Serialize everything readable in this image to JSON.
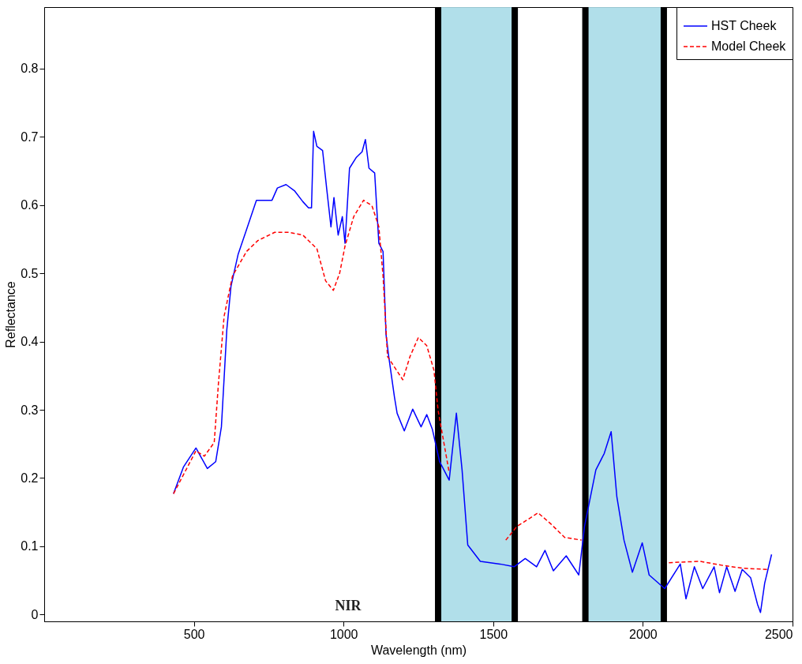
{
  "chart_data": {
    "type": "line",
    "xlabel": "Wavelength (nm)",
    "ylabel": "Reflectance",
    "xlim": [
      0,
      2500
    ],
    "xticks": [
      500,
      1000,
      1500,
      2000,
      2500
    ],
    "ylim": [
      -0.01,
      0.89
    ],
    "yticks": [
      0,
      0.1,
      0.2,
      0.3,
      0.4,
      0.5,
      0.6,
      0.7,
      0.8
    ],
    "grid": false,
    "legend": "top right",
    "series": [
      {
        "name": "HST Cheek",
        "color": "#0000ff",
        "line_style": "solid",
        "x": [
          432,
          465,
          507,
          545,
          573,
          592,
          610,
          624,
          648,
          676,
          709,
          761,
          779,
          808,
          836,
          864,
          883,
          893,
          900,
          911,
          930,
          944,
          958,
          968,
          982,
          996,
          1005,
          1020,
          1043,
          1062,
          1073,
          1085,
          1104,
          1118,
          1132,
          1142,
          1151,
          1170,
          1179,
          1203,
          1231,
          1259,
          1278,
          1297,
          1321,
          1353,
          1377,
          1396,
          1415,
          1457,
          1523,
          1570,
          1607,
          1645,
          1673,
          1701,
          1744,
          1786,
          1805,
          1843,
          1871,
          1894,
          1913,
          1937,
          1965,
          1998,
          2021,
          2073,
          2125,
          2144,
          2172,
          2200,
          2238,
          2256,
          2280,
          2308,
          2332,
          2360,
          2383,
          2393,
          2407,
          2430
        ],
        "values": [
          0.177,
          0.216,
          0.244,
          0.214,
          0.224,
          0.275,
          0.417,
          0.481,
          0.528,
          0.564,
          0.607,
          0.607,
          0.625,
          0.63,
          0.621,
          0.605,
          0.596,
          0.596,
          0.708,
          0.686,
          0.68,
          0.623,
          0.568,
          0.611,
          0.556,
          0.583,
          0.544,
          0.654,
          0.67,
          0.678,
          0.696,
          0.654,
          0.647,
          0.544,
          0.532,
          0.41,
          0.378,
          0.319,
          0.295,
          0.269,
          0.301,
          0.275,
          0.293,
          0.271,
          0.224,
          0.197,
          0.295,
          0.212,
          0.102,
          0.078,
          0.074,
          0.07,
          0.082,
          0.07,
          0.094,
          0.064,
          0.086,
          0.058,
          0.129,
          0.212,
          0.236,
          0.268,
          0.173,
          0.109,
          0.062,
          0.105,
          0.058,
          0.038,
          0.074,
          0.023,
          0.07,
          0.038,
          0.07,
          0.032,
          0.07,
          0.034,
          0.066,
          0.054,
          0.015,
          0.003,
          0.046,
          0.088
        ]
      },
      {
        "name": "Model Cheek",
        "color": "#ff0000",
        "line_style": "dashed",
        "x": [
          432,
          507,
          535,
          568,
          582,
          601,
          629,
          676,
          714,
          770,
          817,
          864,
          911,
          940,
          966,
          987,
          1005,
          1034,
          1067,
          1095,
          1118,
          1132,
          1147,
          1198,
          1222,
          1250,
          1278,
          1302,
          1316,
          1353,
          1450,
          1542,
          1579,
          1650,
          1692,
          1739,
          1795,
          1950,
          2087,
          2191,
          2266,
          2332,
          2416
        ],
        "values": [
          0.177,
          0.24,
          0.232,
          0.252,
          0.338,
          0.437,
          0.496,
          0.532,
          0.548,
          0.56,
          0.56,
          0.556,
          0.536,
          0.489,
          0.475,
          0.5,
          0.54,
          0.583,
          0.607,
          0.599,
          0.568,
          0.496,
          0.378,
          0.344,
          0.378,
          0.406,
          0.394,
          0.358,
          0.299,
          0.208,
          null,
          0.109,
          0.129,
          0.149,
          0.133,
          0.113,
          0.109,
          null,
          0.076,
          0.078,
          0.072,
          0.068,
          0.066
        ]
      }
    ],
    "bands": [
      {
        "axis": "x",
        "from": 1316,
        "to": 1572,
        "color": "#a8dce8"
      },
      {
        "axis": "x",
        "from": 1808,
        "to": 2070,
        "color": "#a8dce8"
      }
    ],
    "annotations": [
      "NIR"
    ]
  }
}
